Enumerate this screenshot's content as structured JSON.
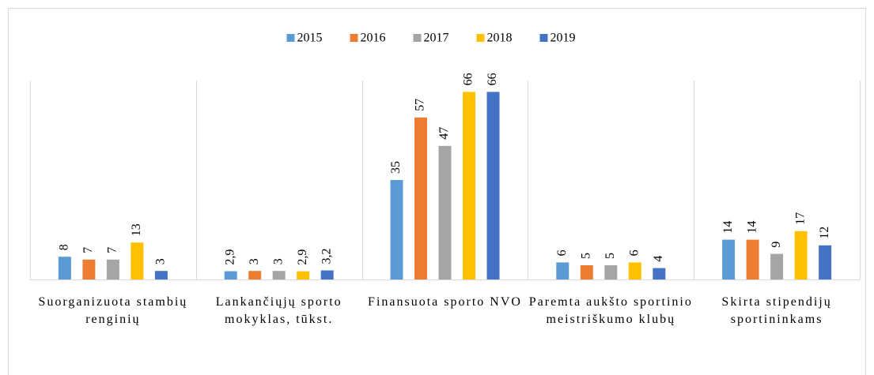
{
  "chart_data": {
    "type": "bar",
    "categories": [
      "Suorganizuota stambių renginių",
      "Lankančiųjų sporto mokyklas, tūkst.",
      "Finansuota sporto NVO",
      "Paremta aukšto sportinio meistriškumo klubų",
      "Skirta stipendijų sportininkams"
    ],
    "series": [
      {
        "name": "2015",
        "color": "#5B9BD5",
        "values": [
          8,
          2.9,
          35,
          6,
          14
        ],
        "value_labels": [
          "8",
          "2,9",
          "35",
          "6",
          "14"
        ]
      },
      {
        "name": "2016",
        "color": "#ED7D31",
        "values": [
          7,
          3,
          57,
          5,
          14
        ],
        "value_labels": [
          "7",
          "3",
          "57",
          "5",
          "14"
        ]
      },
      {
        "name": "2017",
        "color": "#A5A5A5",
        "values": [
          7,
          3,
          47,
          5,
          9
        ],
        "value_labels": [
          "7",
          "3",
          "47",
          "5",
          "9"
        ]
      },
      {
        "name": "2018",
        "color": "#FFC000",
        "values": [
          13,
          2.9,
          66,
          6,
          17
        ],
        "value_labels": [
          "13",
          "2,9",
          "66",
          "6",
          "17"
        ]
      },
      {
        "name": "2019",
        "color": "#4472C4",
        "values": [
          3,
          3.2,
          66,
          4,
          12
        ],
        "value_labels": [
          "3",
          "3,2",
          "66",
          "4",
          "12"
        ]
      }
    ],
    "ylim": [
      0,
      70
    ],
    "legend": "top"
  }
}
